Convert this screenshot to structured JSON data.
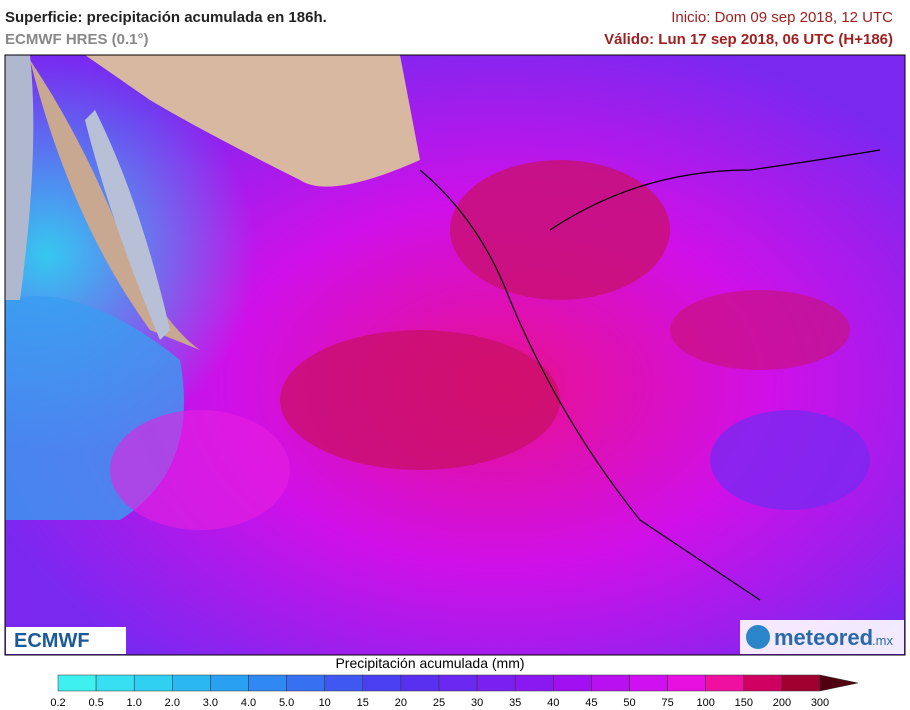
{
  "header": {
    "title": "Superficie: precipitación acumulada en 186h.",
    "model": "ECMWF HRES (0.1°)",
    "init": "Inicio: Dom 09 sep 2018, 12 UTC",
    "valid": "Válido: Lun 17 sep 2018, 06 UTC (H+186)"
  },
  "logos": {
    "left": "ECMWF",
    "right": "meteored",
    "right_suffix": ".mx"
  },
  "legend": {
    "title": "Precipitación acumulada (mm)",
    "labels": [
      "0.2",
      "0.5",
      "1.0",
      "2.0",
      "3.0",
      "4.0",
      "5.0",
      "10",
      "15",
      "20",
      "25",
      "30",
      "35",
      "40",
      "45",
      "50",
      "75",
      "100",
      "150",
      "200",
      "300"
    ],
    "colors": [
      "#3ef0f0",
      "#36e0f2",
      "#30d0f2",
      "#2ab8f2",
      "#2aa0f2",
      "#3088f2",
      "#3870f2",
      "#4058f2",
      "#4a40f2",
      "#5a30f0",
      "#6a28f0",
      "#7a20f0",
      "#8a18f0",
      "#a010f0",
      "#b810f0",
      "#d010f0",
      "#e810e0",
      "#f010a0",
      "#d00060",
      "#a00030",
      "#500010"
    ]
  }
}
